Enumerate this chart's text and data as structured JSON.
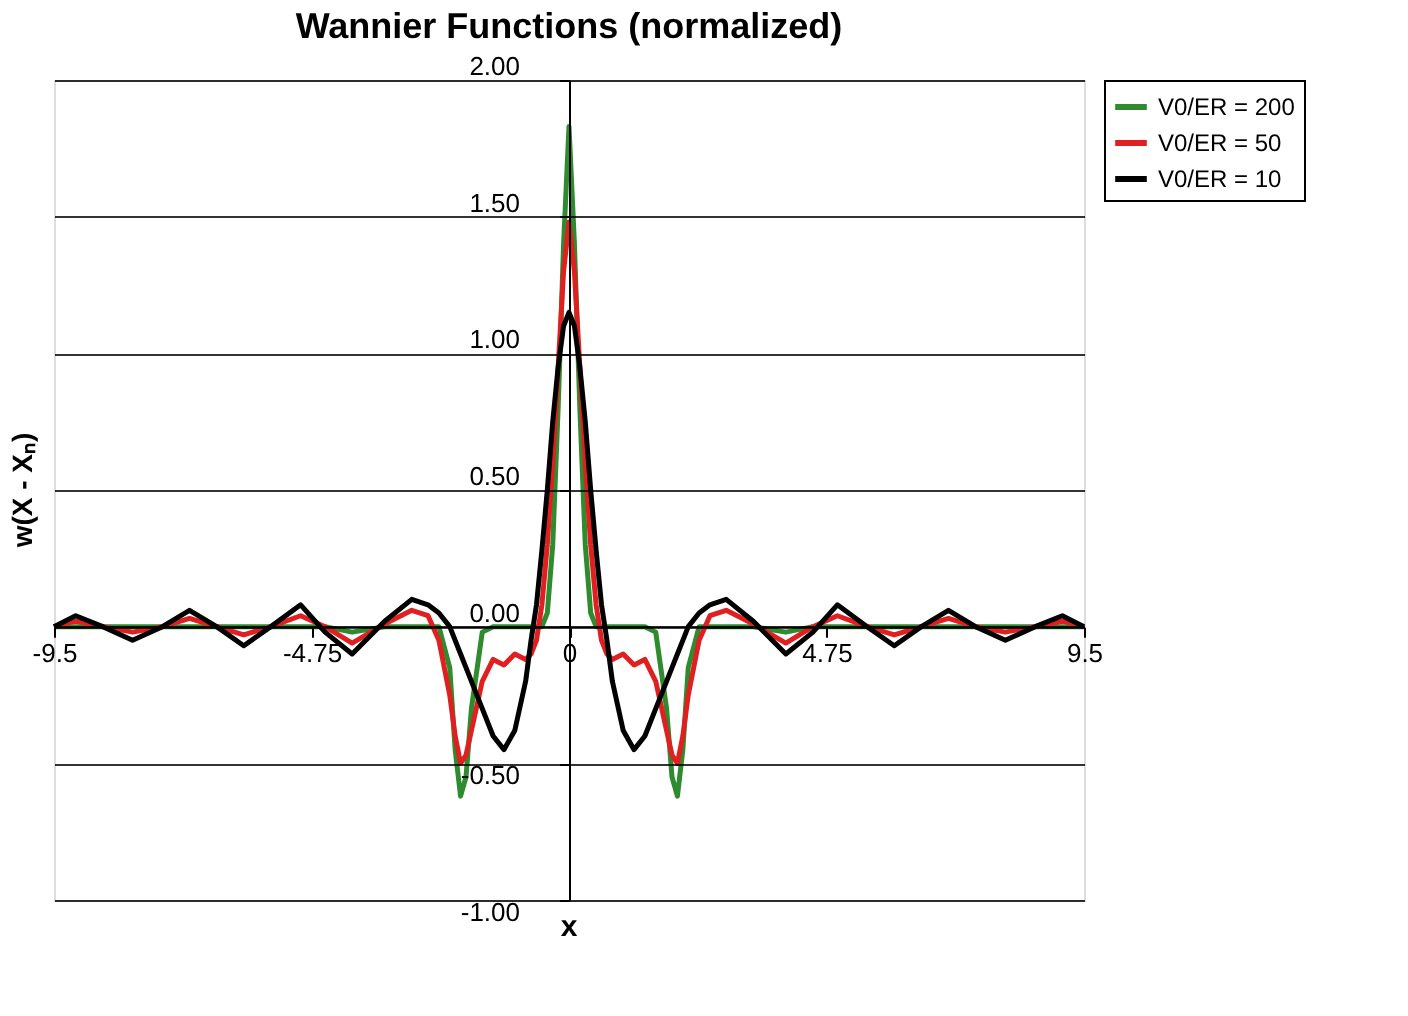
{
  "chart_data": {
    "type": "line",
    "title": "Wannier Functions (normalized)",
    "xlabel": "x",
    "ylabel": "w(X - Xₙ)",
    "x": [
      -9.5,
      -9.1,
      -8.6,
      -8.05,
      -7.5,
      -7.0,
      -6.5,
      -6.0,
      -5.5,
      -4.95,
      -4.5,
      -4.0,
      -3.4,
      -2.9,
      -2.6,
      -2.4,
      -2.2,
      -2.1,
      -2.0,
      -1.9,
      -1.8,
      -1.6,
      -1.4,
      -1.2,
      -1.0,
      -0.8,
      -0.7,
      -0.6,
      -0.5,
      -0.4,
      -0.3,
      -0.2,
      -0.1,
      0,
      0.1,
      0.2,
      0.3,
      0.4,
      0.5,
      0.6,
      0.7,
      0.8,
      1.0,
      1.2,
      1.4,
      1.6,
      1.8,
      1.9,
      2.0,
      2.1,
      2.2,
      2.4,
      2.6,
      2.9,
      3.4,
      4.0,
      4.5,
      4.95,
      5.5,
      6.0,
      6.5,
      7.0,
      7.5,
      8.05,
      8.6,
      9.1,
      9.5
    ],
    "series": [
      {
        "name": "V0/ER = 200",
        "color": "#2e8b2e",
        "values": [
          0,
          0,
          0,
          0,
          0,
          0,
          0,
          0,
          0,
          0,
          0,
          -0.02,
          0,
          0,
          0,
          0,
          -0.15,
          -0.45,
          -0.62,
          -0.55,
          -0.3,
          -0.02,
          0,
          0,
          0,
          0,
          0,
          0,
          0,
          0.05,
          0.3,
          0.8,
          1.4,
          1.83,
          1.4,
          0.8,
          0.3,
          0.05,
          0,
          0,
          0,
          0,
          0,
          0,
          0,
          -0.02,
          -0.3,
          -0.55,
          -0.62,
          -0.45,
          -0.15,
          0,
          0,
          0,
          0,
          -0.02,
          0,
          0,
          0,
          0,
          0,
          0,
          0,
          0,
          0,
          0,
          0
        ]
      },
      {
        "name": "V0/ER = 50",
        "color": "#e02020",
        "values": [
          0,
          0.02,
          0,
          -0.02,
          0,
          0.03,
          0,
          -0.03,
          0,
          0.04,
          0,
          -0.06,
          0.01,
          0.06,
          0.04,
          -0.05,
          -0.25,
          -0.4,
          -0.5,
          -0.47,
          -0.38,
          -0.2,
          -0.12,
          -0.14,
          -0.1,
          -0.12,
          -0.1,
          -0.05,
          0.08,
          0.3,
          0.6,
          0.95,
          1.3,
          1.48,
          1.3,
          0.95,
          0.6,
          0.3,
          0.08,
          -0.05,
          -0.1,
          -0.12,
          -0.1,
          -0.14,
          -0.12,
          -0.2,
          -0.38,
          -0.47,
          -0.5,
          -0.4,
          -0.25,
          -0.05,
          0.04,
          0.06,
          0.01,
          -0.06,
          0,
          0.04,
          0,
          -0.03,
          0,
          0.03,
          0,
          -0.02,
          0,
          0.02,
          0
        ]
      },
      {
        "name": "V0/ER = 10",
        "color": "#000000",
        "values": [
          0,
          0.04,
          0,
          -0.05,
          0,
          0.06,
          0,
          -0.07,
          0,
          0.08,
          -0.02,
          -0.1,
          0.02,
          0.1,
          0.08,
          0.05,
          0,
          -0.05,
          -0.1,
          -0.15,
          -0.2,
          -0.3,
          -0.4,
          -0.45,
          -0.38,
          -0.2,
          -0.05,
          0.08,
          0.28,
          0.5,
          0.75,
          0.95,
          1.1,
          1.15,
          1.1,
          0.95,
          0.75,
          0.5,
          0.28,
          0.08,
          -0.05,
          -0.2,
          -0.38,
          -0.45,
          -0.4,
          -0.3,
          -0.2,
          -0.15,
          -0.1,
          -0.05,
          0,
          0.05,
          0.08,
          0.1,
          0.02,
          -0.1,
          -0.02,
          0.08,
          0,
          -0.07,
          0,
          0.06,
          0,
          -0.05,
          0,
          0.04,
          0
        ]
      }
    ],
    "xlim": [
      -9.5,
      9.5
    ],
    "xticks": [
      -9.5,
      -4.75,
      0,
      4.75,
      9.5
    ],
    "ylim": [
      -1,
      2
    ],
    "yticks": [
      {
        "value": 2,
        "label": "2.00"
      },
      {
        "value": 1.5,
        "label": "1.50"
      },
      {
        "value": 1,
        "label": "1.00"
      },
      {
        "value": 0.5,
        "label": "0.50"
      },
      {
        "value": 0,
        "label": "0.00"
      },
      {
        "value": -0.5,
        "label": "-0.50"
      },
      {
        "value": -1,
        "label": "-1.00"
      }
    ],
    "grid": "y",
    "legend": "right",
    "marker": "none",
    "line_style": "solid"
  }
}
